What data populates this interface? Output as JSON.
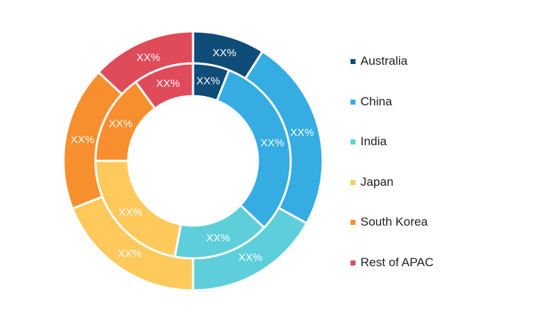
{
  "chart_data": {
    "type": "pie",
    "subtype": "double-donut",
    "categories": [
      "Australia",
      "China",
      "India",
      "Japan",
      "South Korea",
      "Rest of APAC"
    ],
    "colors": [
      "#0f4c77",
      "#35ace2",
      "#5ecfda",
      "#ffc95c",
      "#f78f2f",
      "#e04b5a"
    ],
    "series": [
      {
        "ring": "outer",
        "values": [
          9,
          24,
          17,
          19,
          18,
          13
        ],
        "labels": [
          "XX%",
          "XX%",
          "XX%",
          "XX%",
          "XX%",
          "XX%"
        ]
      },
      {
        "ring": "inner",
        "values": [
          6,
          31,
          16,
          22,
          15,
          10
        ],
        "labels": [
          "XX%",
          "XX%",
          "XX%",
          "XX%",
          "XX%",
          "XX%"
        ]
      }
    ],
    "legend_position": "right"
  }
}
